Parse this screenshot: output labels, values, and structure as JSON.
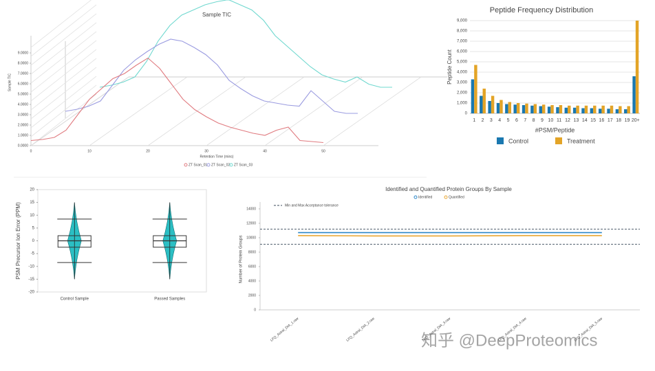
{
  "chart_data": [
    {
      "type": "line",
      "title": "Sample TIC",
      "xlabel": "Retention Time (mins)",
      "ylabel": "Sample TIC",
      "x": [
        0,
        2,
        4,
        6,
        8,
        10,
        12,
        14,
        16,
        18,
        20,
        22,
        24,
        26,
        28,
        30,
        32,
        34,
        36,
        38,
        40,
        42,
        44,
        46,
        48,
        50
      ],
      "xlim": [
        0,
        50
      ],
      "xticks": [
        0,
        10,
        20,
        30,
        40,
        50
      ],
      "ylim": [
        0,
        10
      ],
      "yticks": [
        {
          "value": 0,
          "label": "0.0000"
        },
        {
          "value": 1,
          "label": "1.0000"
        },
        {
          "value": 2,
          "label": "2.0000"
        },
        {
          "value": 3,
          "label": "3.0000"
        },
        {
          "value": 4,
          "label": "4.0000"
        },
        {
          "value": 5,
          "label": "5.0000"
        },
        {
          "value": 6,
          "label": "6.0000"
        },
        {
          "value": 7,
          "label": "7.0000"
        },
        {
          "value": 8,
          "label": "8.0000"
        },
        {
          "value": 9,
          "label": "9.0000"
        }
      ],
      "series": [
        {
          "name": "ZT Scan_01",
          "color": "#e07a7f",
          "values": [
            0.5,
            0.6,
            0.8,
            1.5,
            3,
            4.5,
            5.5,
            6.5,
            7,
            7.8,
            8.5,
            7.5,
            6,
            4.5,
            3.5,
            2.8,
            2.2,
            1.8,
            1.5,
            1.2,
            1,
            1.5,
            1.8,
            0.5,
            0.4,
            0.3
          ]
        },
        {
          "name": "ZT Scan_02",
          "color": "#9a9be0",
          "values": [
            1,
            1.2,
            1.5,
            2,
            3.5,
            5,
            6,
            6.8,
            7.5,
            8,
            7.8,
            7.2,
            6.5,
            5.5,
            4,
            3.2,
            2.5,
            2,
            1.8,
            1.6,
            1.5,
            3,
            2,
            1,
            0.8,
            0.8
          ]
        },
        {
          "name": "ZT Scan_03",
          "color": "#6fd8cf",
          "values": [
            1,
            1.2,
            1.5,
            2,
            3.5,
            5.5,
            7,
            8,
            8.5,
            9,
            9.3,
            9.5,
            9,
            8.5,
            7.5,
            6,
            5,
            4,
            3,
            2.2,
            1.8,
            1.5,
            2,
            1.3,
            1,
            1
          ]
        }
      ]
    },
    {
      "type": "bar",
      "title": "Peptide Frequency Distribution",
      "xlabel": "#PSM/Peptide",
      "ylabel": "Peptide Count",
      "categories": [
        "1",
        "2",
        "3",
        "4",
        "5",
        "6",
        "7",
        "8",
        "9",
        "10",
        "11",
        "12",
        "13",
        "14",
        "15",
        "16",
        "17",
        "18",
        "19",
        "20+"
      ],
      "ylim": [
        0,
        9000
      ],
      "yticks": [
        0,
        {
          "value": 1000,
          "label": "1,000"
        },
        {
          "value": 2000,
          "label": "2,000"
        },
        {
          "value": 3000,
          "label": "3,000"
        },
        {
          "value": 4000,
          "label": "4,000"
        },
        {
          "value": 5000,
          "label": "5,000"
        },
        {
          "value": 6000,
          "label": "6,000"
        },
        {
          "value": 7000,
          "label": "7,000"
        },
        {
          "value": 8000,
          "label": "8,000"
        },
        {
          "value": 9000,
          "label": "9,000"
        }
      ],
      "grid": true,
      "series": [
        {
          "name": "Control",
          "color": "#1a78b0",
          "values": [
            3300,
            1700,
            1200,
            1000,
            900,
            850,
            800,
            750,
            700,
            650,
            600,
            550,
            550,
            500,
            500,
            450,
            450,
            400,
            400,
            3600
          ]
        },
        {
          "name": "Treatment",
          "color": "#e3a427",
          "values": [
            4700,
            2400,
            1700,
            1300,
            1100,
            1000,
            950,
            900,
            850,
            800,
            800,
            750,
            750,
            750,
            750,
            750,
            750,
            700,
            700,
            9000
          ]
        }
      ]
    },
    {
      "type": "box",
      "ylabel": "PSM Precursor Ion Error (PPM)",
      "categories": [
        "Control Sample",
        "Passed Samples"
      ],
      "ylim": [
        -20,
        20
      ],
      "yticks": [
        -20,
        -15,
        -10,
        -5,
        0,
        5,
        10,
        15,
        20
      ],
      "color": "#2bbfc4",
      "boxes": [
        {
          "min": -8.5,
          "q1": -2.5,
          "median": 0,
          "q3": 2,
          "max": 8.5,
          "violin_min": -15,
          "violin_max": 15
        },
        {
          "min": -8.5,
          "q1": -2.5,
          "median": 0,
          "q3": 2,
          "max": 8.5,
          "violin_min": -15,
          "violin_max": 15
        }
      ]
    },
    {
      "type": "line",
      "title": "Identified and Quantified Protein Groups By Sample",
      "ylabel": "Number of Protein Groups",
      "categories": [
        "LFQ_Astral_DIA_1.raw",
        "LFQ_Astral_DIA_2.raw",
        "LFQ_Astral_DIA_3.raw",
        "LFQ_Astral_DIA_4.raw",
        "LFQ_Astral_DIA_5.raw"
      ],
      "ylim": [
        0,
        14000
      ],
      "yticks": [
        0,
        2000,
        4000,
        6000,
        8000,
        10000,
        12000,
        14000
      ],
      "series": [
        {
          "name": "Identified",
          "color": "#2a86c8",
          "values": [
            10700,
            10700,
            10700,
            10700,
            10700
          ]
        },
        {
          "name": "Quantified",
          "color": "#e8a530",
          "values": [
            10300,
            10250,
            10250,
            10300,
            10300
          ]
        }
      ],
      "tolerance": {
        "name": "Min and Max Acceptance tolerance",
        "color": "#3a4a5a",
        "values": [
          11200,
          9100
        ]
      }
    }
  ],
  "watermark": "知乎 @DeepProteomics"
}
